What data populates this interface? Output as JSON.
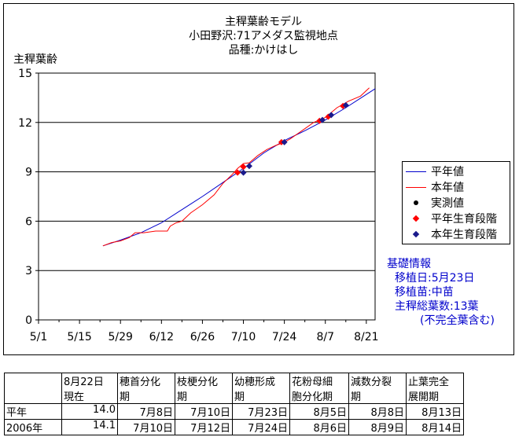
{
  "title": {
    "line1": "主稈葉齢モデル",
    "line2": "小田野沢:71アメダス監視地点",
    "line3": "品種:かけはし"
  },
  "colors": {
    "heinen": "#0000cc",
    "honnen": "#ff0000",
    "measured": "#000000",
    "stage_heinen": "#ff0000",
    "stage_honnen": "#1a1a8c",
    "info": "#0000cc"
  },
  "legend": [
    "平年値",
    "本年値",
    "実測値",
    "平年生育段階",
    "本年生育段階"
  ],
  "info": {
    "title": "基礎情報",
    "lines": [
      "移植日:5月23日",
      "移植苗:中苗",
      "主稈総葉数:13葉",
      "(不完全葉含む)"
    ]
  },
  "table": {
    "headers": [
      [
        "",
        ""
      ],
      [
        "8月22日",
        "現在"
      ],
      [
        "穂首分化",
        "期"
      ],
      [
        "枝梗分化",
        "期"
      ],
      [
        "幼穂形成",
        "期"
      ],
      [
        "花粉母細",
        "胞分化期"
      ],
      [
        "減数分裂",
        "期"
      ],
      [
        "止葉完全",
        "展開期"
      ]
    ],
    "rows": [
      [
        "平年",
        "14.0",
        "7月8日",
        "7月10日",
        "7月23日",
        "8月5日",
        "8月8日",
        "8月13日"
      ],
      [
        "2006年",
        "14.1",
        "7月10日",
        "7月12日",
        "7月24日",
        "8月6日",
        "8月9日",
        "8月14日"
      ]
    ]
  },
  "chart_data": {
    "type": "line",
    "ylabel": "主稈葉齢",
    "ylim": [
      0,
      15
    ],
    "yticks": [
      0,
      3,
      6,
      9,
      12,
      15
    ],
    "xlim": [
      0,
      115
    ],
    "xticks": [
      {
        "day": 0,
        "label": "5/1"
      },
      {
        "day": 14,
        "label": "5/15"
      },
      {
        "day": 28,
        "label": "5/29"
      },
      {
        "day": 42,
        "label": "6/12"
      },
      {
        "day": 56,
        "label": "6/26"
      },
      {
        "day": 70,
        "label": "7/10"
      },
      {
        "day": 84,
        "label": "7/24"
      },
      {
        "day": 98,
        "label": "8/7"
      },
      {
        "day": 112,
        "label": "8/21"
      }
    ],
    "x_unit": "days from 5/1",
    "series": [
      {
        "name": "平年値",
        "color": "#0000cc",
        "x": [
          22,
          28,
          35,
          42,
          49,
          56,
          63,
          70,
          77,
          84,
          91,
          98,
          105,
          112,
          115
        ],
        "y": [
          4.5,
          4.85,
          5.3,
          5.9,
          6.7,
          7.5,
          8.35,
          9.2,
          10.15,
          10.9,
          11.5,
          12.15,
          12.9,
          13.7,
          14.05
        ]
      },
      {
        "name": "本年値",
        "color": "#ff0000",
        "x": [
          22,
          25,
          28,
          31,
          33,
          36,
          40,
          44,
          45,
          47,
          49,
          52,
          56,
          60,
          63,
          66,
          68,
          70,
          72,
          75,
          78,
          81,
          84,
          86,
          90,
          94,
          98,
          102,
          106,
          110,
          113
        ],
        "y": [
          4.5,
          4.7,
          4.8,
          5.0,
          5.3,
          5.3,
          5.4,
          5.4,
          5.7,
          5.9,
          6.0,
          6.5,
          7.0,
          7.6,
          8.3,
          8.8,
          9.2,
          9.5,
          9.55,
          10.0,
          10.35,
          10.6,
          10.8,
          11.0,
          11.5,
          12.0,
          12.3,
          12.9,
          13.3,
          13.6,
          14.1
        ]
      },
      {
        "name": "実測値",
        "color": "#000000",
        "x": [],
        "y": []
      },
      {
        "name": "平年生育段階",
        "color": "#ff0000",
        "marker": "diamond",
        "x": [
          68,
          70,
          83,
          96,
          99,
          104
        ],
        "y": [
          8.95,
          9.3,
          10.8,
          12.1,
          12.35,
          13.0
        ]
      },
      {
        "name": "本年生育段階",
        "color": "#1a1a8c",
        "marker": "diamond",
        "x": [
          70,
          72,
          84,
          97,
          100,
          105
        ],
        "y": [
          8.95,
          9.35,
          10.8,
          12.15,
          12.45,
          13.05
        ]
      }
    ]
  }
}
